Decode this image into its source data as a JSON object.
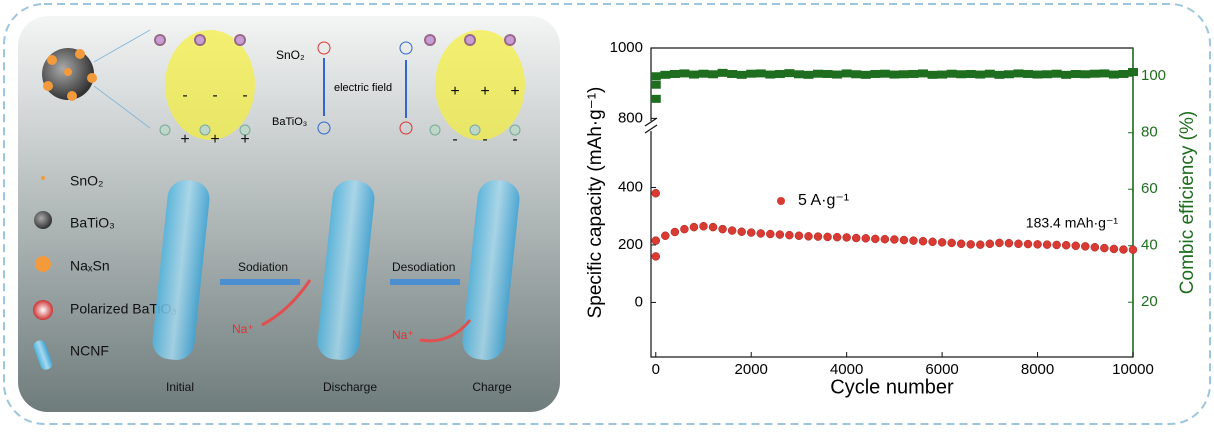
{
  "schematic": {
    "top_labels": [
      "SnO₂",
      "electric field",
      "BaTiO₃"
    ],
    "legend": [
      "SnO₂",
      "BaTiO₃",
      "NaₓSn",
      "Polarized BaTiO₃",
      "NCNF"
    ],
    "arrows": [
      "Sodiation",
      "Desodiation"
    ],
    "ions": [
      "Na⁺",
      "Na⁺"
    ],
    "stages": [
      "Initial",
      "Discharge",
      "Charge"
    ]
  },
  "chart_data": {
    "type": "scatter",
    "x": [
      0,
      0,
      0,
      200,
      400,
      600,
      800,
      1000,
      1200,
      1400,
      1600,
      1800,
      2000,
      2200,
      2400,
      2600,
      2800,
      3000,
      3200,
      3400,
      3600,
      3800,
      4000,
      4200,
      4400,
      4600,
      4800,
      5000,
      5200,
      5400,
      5600,
      5800,
      6000,
      6200,
      6400,
      6600,
      6800,
      7000,
      7200,
      7400,
      7600,
      7800,
      8000,
      8200,
      8400,
      8600,
      8800,
      9000,
      9200,
      9400,
      9600,
      9800,
      10000
    ],
    "series": [
      {
        "name": "5 A·g⁻¹",
        "color": "#d93a32",
        "values": [
          380,
          160,
          215,
          232,
          245,
          255,
          262,
          265,
          262,
          255,
          250,
          246,
          243,
          240,
          238,
          236,
          234,
          232,
          230,
          229,
          228,
          227,
          226,
          224,
          223,
          221,
          220,
          219,
          217,
          215,
          213,
          211,
          209,
          207,
          204,
          202,
          201,
          204,
          207,
          206,
          204,
          203,
          202,
          201,
          200,
          199,
          197,
          195,
          192,
          189,
          186,
          184,
          183.4
        ]
      },
      {
        "color": "#1f6e1f",
        "axis": "y2",
        "values": [
          92,
          97,
          100,
          100.5,
          100.8,
          101,
          100.6,
          100.9,
          100.7,
          101.2,
          100.8,
          100.5,
          100.9,
          101,
          100.6,
          100.8,
          101.1,
          100.7,
          100.5,
          100.9,
          100.8,
          100.6,
          101,
          100.7,
          100.5,
          100.8,
          100.9,
          100.6,
          100.7,
          100.8,
          101,
          100.5,
          100.6,
          100.9,
          100.7,
          100.8,
          100.6,
          100.9,
          100.5,
          100.7,
          101,
          100.8,
          100.6,
          100.7,
          100.9,
          100.5,
          100.8,
          100.7,
          100.9,
          101,
          100.6,
          100.8,
          101.5
        ]
      }
    ],
    "xlabel": "Cycle number",
    "ylabel": "Specific capacity (mAh·g⁻¹)",
    "y2label": "Combic efficiency (%)",
    "annotation": "183.4 mAh·g⁻¹",
    "xlim": [
      -100,
      10000
    ],
    "xticks": [
      0,
      2000,
      4000,
      6000,
      8000,
      10000
    ],
    "ylim": [
      -190,
      1000
    ],
    "ybreak": [
      600,
      784
    ],
    "yticks": [
      0,
      200,
      400,
      800,
      1000
    ],
    "y2lim": [
      0.6,
      110
    ],
    "y2ticks": [
      20,
      40,
      60,
      80,
      100
    ]
  }
}
